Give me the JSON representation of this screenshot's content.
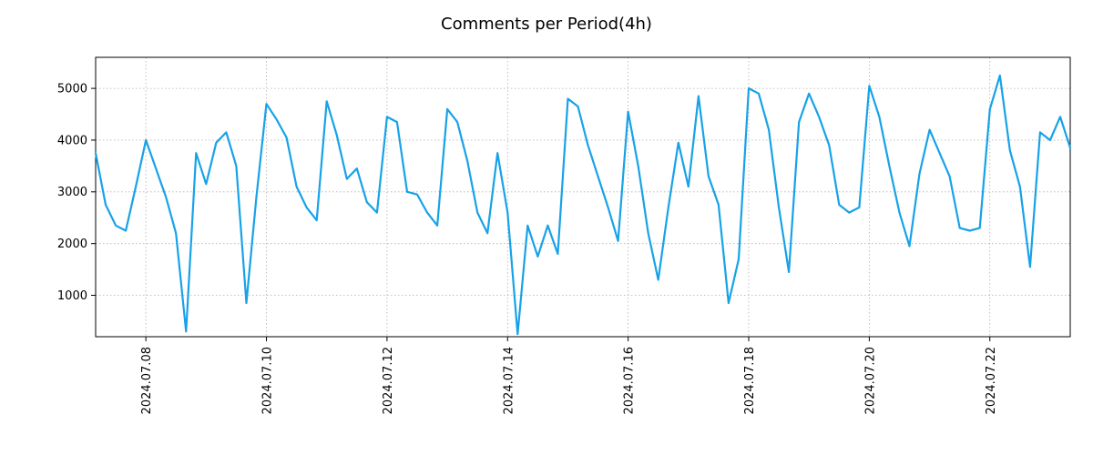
{
  "title": "Comments per Period(4h)",
  "chart_data": {
    "type": "line",
    "title": "Comments per Period(4h)",
    "series_name": "comments-per-4h",
    "period_hours": 4,
    "values": [
      3750,
      2750,
      2350,
      2250,
      3100,
      4000,
      3450,
      2900,
      2200,
      300,
      3750,
      3150,
      3950,
      4150,
      3500,
      850,
      2900,
      4700,
      4400,
      4050,
      3100,
      2700,
      2450,
      4750,
      4100,
      3250,
      3450,
      2800,
      2600,
      4450,
      4350,
      3000,
      2950,
      2600,
      2350,
      4600,
      4350,
      3600,
      2600,
      2200,
      3750,
      2600,
      250,
      2350,
      1750,
      2350,
      1800,
      4800,
      4650,
      3900,
      3300,
      2700,
      2050,
      4550,
      3500,
      2200,
      1300,
      2700,
      3950,
      3100,
      4850,
      3300,
      2750,
      850,
      1700,
      5000,
      4900,
      4200,
      2700,
      1450,
      4350,
      4900,
      4450,
      3900,
      2750,
      2600,
      2700,
      5050,
      4450,
      3500,
      2600,
      1950,
      3350,
      4200,
      3750,
      3300,
      2300,
      2250,
      2300,
      4600,
      5250,
      3800,
      3100,
      1550,
      4150,
      4000,
      4450,
      3850
    ],
    "x_tick_labels": [
      "2024.07.08",
      "2024.07.10",
      "2024.07.12",
      "2024.07.14",
      "2024.07.16",
      "2024.07.18",
      "2024.07.20",
      "2024.07.22"
    ],
    "x_tick_indices": [
      5,
      17,
      29,
      41,
      53,
      65,
      77,
      89
    ],
    "y_ticks": [
      1000,
      2000,
      3000,
      4000,
      5000
    ],
    "ylim": [
      200,
      5600
    ],
    "grid": true,
    "legend": "none",
    "line_color": "#17a2e8",
    "grid_color": "#b0b0b0",
    "frame_color": "#000000"
  }
}
